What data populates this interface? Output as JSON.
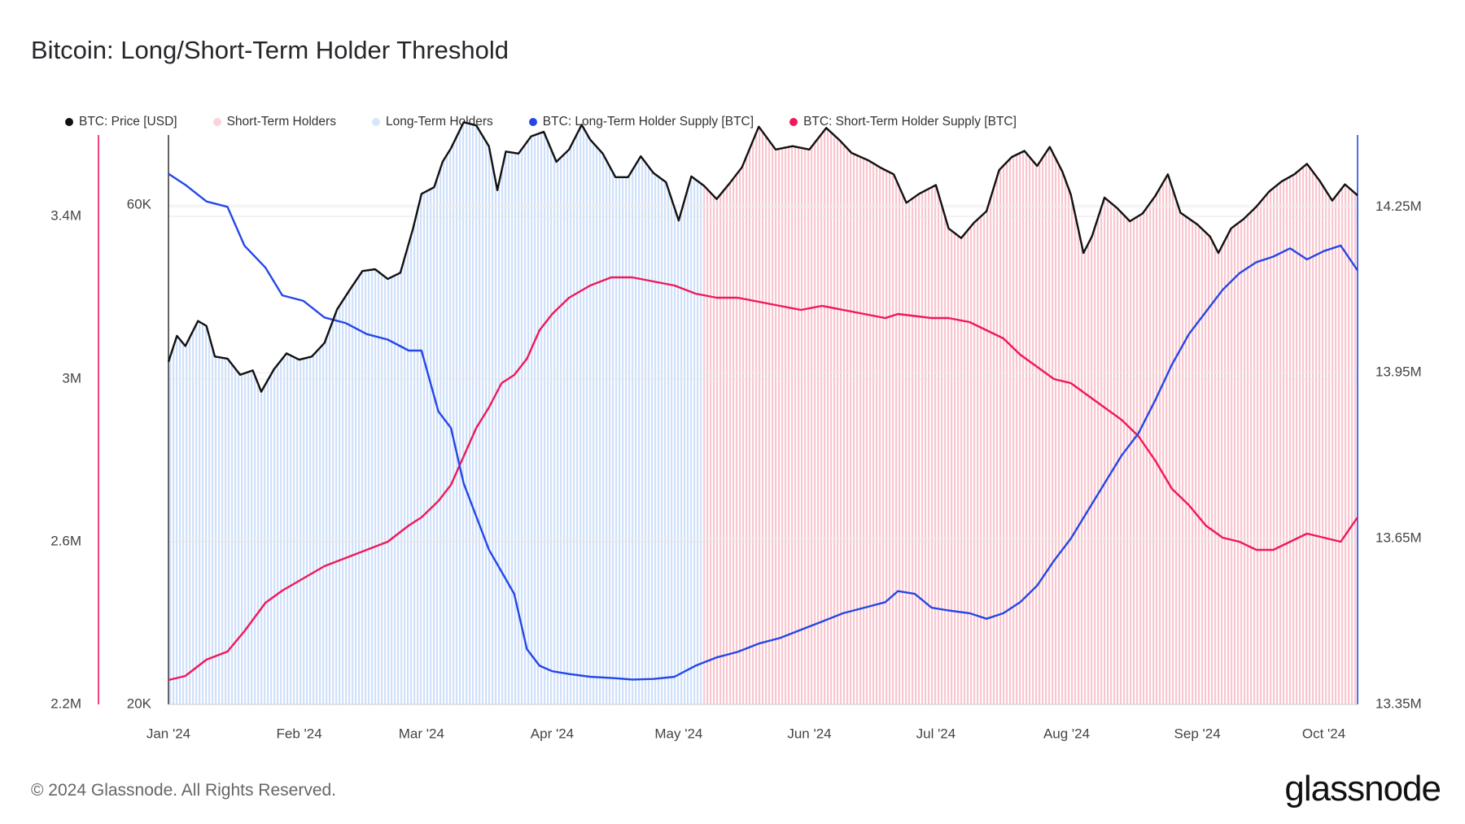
{
  "title": "Bitcoin: Long/Short-Term Holder Threshold",
  "copyright": "© 2024 Glassnode. All Rights Reserved.",
  "brand": "glassnode",
  "legend": [
    {
      "label": "BTC: Price [USD]",
      "color": "#111111"
    },
    {
      "label": "Short-Term Holders",
      "color": "#fbd3d9"
    },
    {
      "label": "Long-Term Holders",
      "color": "#d6e6fb"
    },
    {
      "label": "BTC: Long-Term Holder Supply [BTC]",
      "color": "#2447e8"
    },
    {
      "label": "BTC: Short-Term Holder Supply [BTC]",
      "color": "#f0185a"
    }
  ],
  "chart_data": {
    "type": "line",
    "x_ticks": [
      "Jan '24",
      "Feb '24",
      "Mar '24",
      "Apr '24",
      "May '24",
      "Jun '24",
      "Jul '24",
      "Aug '24",
      "Sep '24",
      "Oct '24"
    ],
    "x_range": [
      "2024-01-01",
      "2024-10-09"
    ],
    "regime_split": "2024-05-10",
    "left_axis_sth": {
      "ticks": [
        {
          "v": 2200000,
          "label": "2.2M"
        },
        {
          "v": 2600000,
          "label": "2.6M"
        },
        {
          "v": 3000000,
          "label": "3M"
        },
        {
          "v": 3400000,
          "label": "3.4M"
        }
      ],
      "range": [
        2200000,
        3600000
      ],
      "color": "#f0185a"
    },
    "left_axis_price": {
      "ticks": [
        {
          "v": 20000,
          "label": "20K"
        },
        {
          "v": 60000,
          "label": "60K"
        }
      ],
      "range": [
        20000,
        70000
      ],
      "log": true
    },
    "right_axis_lth": {
      "ticks": [
        {
          "v": 13350000,
          "label": "13.35M"
        },
        {
          "v": 13650000,
          "label": "13.65M"
        },
        {
          "v": 13950000,
          "label": "13.95M"
        },
        {
          "v": 14250000,
          "label": "14.25M"
        }
      ],
      "range": [
        13350000,
        14380000
      ],
      "color": "#2447e8"
    },
    "series": [
      {
        "name": "BTC: Price [USD]",
        "axis": "price",
        "color": "#111111",
        "x": [
          "2024-01-01",
          "2024-01-03",
          "2024-01-05",
          "2024-01-08",
          "2024-01-10",
          "2024-01-12",
          "2024-01-15",
          "2024-01-18",
          "2024-01-21",
          "2024-01-23",
          "2024-01-26",
          "2024-01-29",
          "2024-02-01",
          "2024-02-04",
          "2024-02-07",
          "2024-02-10",
          "2024-02-13",
          "2024-02-16",
          "2024-02-19",
          "2024-02-22",
          "2024-02-25",
          "2024-02-28",
          "2024-03-01",
          "2024-03-04",
          "2024-03-06",
          "2024-03-08",
          "2024-03-11",
          "2024-03-14",
          "2024-03-17",
          "2024-03-19",
          "2024-03-21",
          "2024-03-24",
          "2024-03-27",
          "2024-03-30",
          "2024-04-02",
          "2024-04-05",
          "2024-04-08",
          "2024-04-10",
          "2024-04-13",
          "2024-04-16",
          "2024-04-19",
          "2024-04-22",
          "2024-04-25",
          "2024-04-28",
          "2024-05-01",
          "2024-05-04",
          "2024-05-07",
          "2024-05-10",
          "2024-05-13",
          "2024-05-16",
          "2024-05-20",
          "2024-05-24",
          "2024-05-28",
          "2024-06-01",
          "2024-06-05",
          "2024-06-08",
          "2024-06-11",
          "2024-06-15",
          "2024-06-18",
          "2024-06-21",
          "2024-06-24",
          "2024-06-27",
          "2024-07-01",
          "2024-07-04",
          "2024-07-07",
          "2024-07-10",
          "2024-07-13",
          "2024-07-16",
          "2024-07-19",
          "2024-07-22",
          "2024-07-25",
          "2024-07-28",
          "2024-07-31",
          "2024-08-02",
          "2024-08-05",
          "2024-08-07",
          "2024-08-10",
          "2024-08-13",
          "2024-08-16",
          "2024-08-19",
          "2024-08-22",
          "2024-08-25",
          "2024-08-28",
          "2024-09-01",
          "2024-09-04",
          "2024-09-06",
          "2024-09-09",
          "2024-09-12",
          "2024-09-15",
          "2024-09-18",
          "2024-09-21",
          "2024-09-24",
          "2024-09-27",
          "2024-09-30",
          "2024-10-03",
          "2024-10-06",
          "2024-10-09"
        ],
        "values": [
          42500,
          45000,
          44000,
          46500,
          46000,
          43000,
          42800,
          41300,
          41700,
          39800,
          41800,
          43300,
          42700,
          43000,
          44300,
          47700,
          49800,
          51900,
          52100,
          51000,
          51700,
          57000,
          61500,
          62400,
          66000,
          68000,
          72000,
          71500,
          68300,
          62000,
          67500,
          67200,
          69800,
          70500,
          66000,
          67800,
          71600,
          69300,
          67200,
          63800,
          63800,
          66800,
          64400,
          63100,
          58000,
          63900,
          62600,
          60800,
          62900,
          65200,
          71300,
          67800,
          68300,
          67800,
          71100,
          69300,
          67300,
          66200,
          65100,
          64200,
          60300,
          61500,
          62700,
          57000,
          55800,
          57700,
          59200,
          64800,
          66700,
          67600,
          65400,
          68200,
          64600,
          61400,
          54000,
          56000,
          61000,
          59600,
          57900,
          58900,
          61200,
          64200,
          59000,
          57500,
          56000,
          54000,
          57000,
          58200,
          59800,
          61800,
          63200,
          64200,
          65700,
          63300,
          60600,
          62800,
          61300
        ]
      },
      {
        "name": "BTC: Long-Term Holder Supply [BTC]",
        "axis": "lth",
        "color": "#2447e8",
        "x": [
          "2024-01-01",
          "2024-01-05",
          "2024-01-10",
          "2024-01-15",
          "2024-01-19",
          "2024-01-24",
          "2024-01-28",
          "2024-02-02",
          "2024-02-07",
          "2024-02-12",
          "2024-02-17",
          "2024-02-22",
          "2024-02-27",
          "2024-03-01",
          "2024-03-05",
          "2024-03-08",
          "2024-03-11",
          "2024-03-14",
          "2024-03-17",
          "2024-03-20",
          "2024-03-23",
          "2024-03-26",
          "2024-03-29",
          "2024-04-01",
          "2024-04-05",
          "2024-04-10",
          "2024-04-15",
          "2024-04-20",
          "2024-04-25",
          "2024-04-30",
          "2024-05-05",
          "2024-05-10",
          "2024-05-15",
          "2024-05-20",
          "2024-05-25",
          "2024-05-30",
          "2024-06-04",
          "2024-06-09",
          "2024-06-14",
          "2024-06-19",
          "2024-06-22",
          "2024-06-26",
          "2024-06-30",
          "2024-07-04",
          "2024-07-09",
          "2024-07-13",
          "2024-07-17",
          "2024-07-21",
          "2024-07-25",
          "2024-07-29",
          "2024-08-02",
          "2024-08-06",
          "2024-08-10",
          "2024-08-14",
          "2024-08-18",
          "2024-08-22",
          "2024-08-26",
          "2024-08-30",
          "2024-09-03",
          "2024-09-07",
          "2024-09-11",
          "2024-09-15",
          "2024-09-19",
          "2024-09-23",
          "2024-09-27",
          "2024-10-01",
          "2024-10-05",
          "2024-10-09"
        ],
        "values": [
          14310000,
          14290000,
          14260000,
          14250000,
          14180000,
          14140000,
          14090000,
          14080000,
          14050000,
          14040000,
          14020000,
          14010000,
          13990000,
          13990000,
          13880000,
          13850000,
          13750000,
          13690000,
          13630000,
          13590000,
          13550000,
          13450000,
          13420000,
          13410000,
          13405000,
          13400000,
          13398000,
          13395000,
          13396000,
          13400000,
          13420000,
          13435000,
          13445000,
          13460000,
          13470000,
          13485000,
          13500000,
          13515000,
          13525000,
          13535000,
          13555000,
          13550000,
          13525000,
          13520000,
          13515000,
          13505000,
          13515000,
          13535000,
          13565000,
          13610000,
          13650000,
          13700000,
          13750000,
          13800000,
          13840000,
          13900000,
          13965000,
          14020000,
          14060000,
          14100000,
          14130000,
          14150000,
          14160000,
          14175000,
          14155000,
          14170000,
          14180000,
          14135000
        ]
      },
      {
        "name": "BTC: Short-Term Holder Supply [BTC]",
        "axis": "sth",
        "color": "#f0185a",
        "x": [
          "2024-01-01",
          "2024-01-05",
          "2024-01-10",
          "2024-01-15",
          "2024-01-19",
          "2024-01-24",
          "2024-01-28",
          "2024-02-02",
          "2024-02-07",
          "2024-02-12",
          "2024-02-17",
          "2024-02-22",
          "2024-02-27",
          "2024-03-01",
          "2024-03-05",
          "2024-03-08",
          "2024-03-11",
          "2024-03-14",
          "2024-03-17",
          "2024-03-20",
          "2024-03-23",
          "2024-03-26",
          "2024-03-29",
          "2024-04-01",
          "2024-04-05",
          "2024-04-10",
          "2024-04-15",
          "2024-04-20",
          "2024-04-25",
          "2024-04-30",
          "2024-05-05",
          "2024-05-10",
          "2024-05-15",
          "2024-05-20",
          "2024-05-25",
          "2024-05-30",
          "2024-06-04",
          "2024-06-09",
          "2024-06-14",
          "2024-06-19",
          "2024-06-22",
          "2024-06-26",
          "2024-06-30",
          "2024-07-04",
          "2024-07-09",
          "2024-07-13",
          "2024-07-17",
          "2024-07-21",
          "2024-07-25",
          "2024-07-29",
          "2024-08-02",
          "2024-08-06",
          "2024-08-10",
          "2024-08-14",
          "2024-08-18",
          "2024-08-22",
          "2024-08-26",
          "2024-08-30",
          "2024-09-03",
          "2024-09-07",
          "2024-09-11",
          "2024-09-15",
          "2024-09-19",
          "2024-09-23",
          "2024-09-27",
          "2024-10-01",
          "2024-10-05",
          "2024-10-09"
        ],
        "values": [
          2260000,
          2270000,
          2310000,
          2330000,
          2380000,
          2450000,
          2480000,
          2510000,
          2540000,
          2560000,
          2580000,
          2600000,
          2640000,
          2660000,
          2700000,
          2740000,
          2810000,
          2880000,
          2930000,
          2990000,
          3010000,
          3050000,
          3120000,
          3160000,
          3200000,
          3230000,
          3250000,
          3250000,
          3240000,
          3230000,
          3210000,
          3200000,
          3200000,
          3190000,
          3180000,
          3170000,
          3180000,
          3170000,
          3160000,
          3150000,
          3160000,
          3155000,
          3150000,
          3150000,
          3140000,
          3120000,
          3100000,
          3060000,
          3030000,
          3000000,
          2990000,
          2960000,
          2930000,
          2900000,
          2860000,
          2800000,
          2730000,
          2690000,
          2640000,
          2610000,
          2600000,
          2580000,
          2580000,
          2600000,
          2620000,
          2610000,
          2600000,
          2660000
        ]
      }
    ],
    "grid": true,
    "legend_position": "top-left"
  }
}
